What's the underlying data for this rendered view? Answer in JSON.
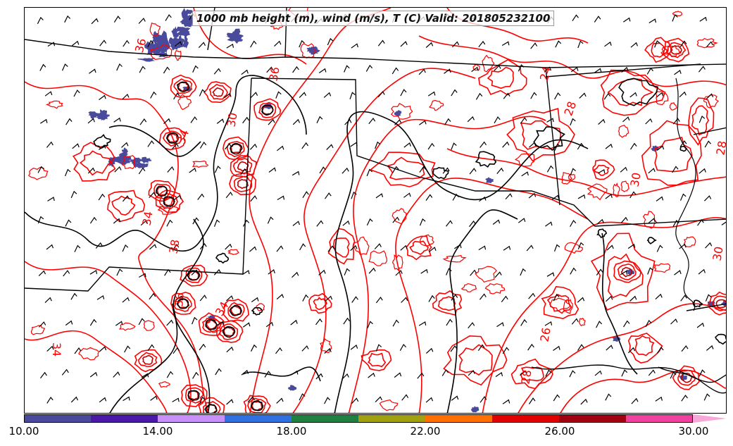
{
  "title": "1000 mb height (m), wind (m/s), T (C) Valid: 201805232100",
  "colorbar": {
    "colors": [
      "#4a4a9c",
      "#4b18a8",
      "#c890f8",
      "#3070e0",
      "#208040",
      "#a0a010",
      "#ff7000",
      "#e00000",
      "#a00010",
      "#f040a0"
    ],
    "extend_color": "#f8a8d8",
    "tick_labels": [
      "10.00",
      "14.00",
      "18.00",
      "22.00",
      "26.00",
      "30.00"
    ]
  },
  "contour_labels": [
    "36",
    "34",
    "30",
    "34",
    "38",
    "36",
    "34",
    "34",
    "28",
    "24",
    "30",
    "28",
    "26",
    "28",
    "36",
    "30"
  ],
  "colors": {
    "temperature_contour": "#ff0000",
    "height_contour": "#000000",
    "wind_barb": "#000000",
    "wind_fill": "#4a4a9c"
  }
}
